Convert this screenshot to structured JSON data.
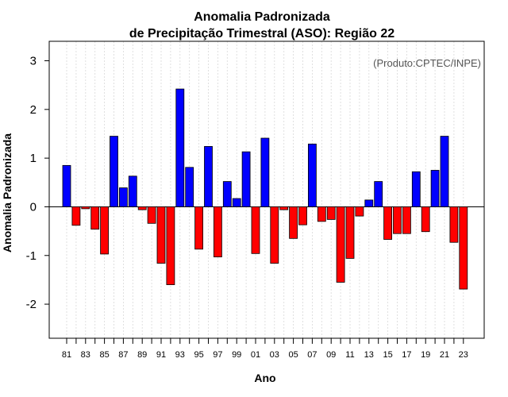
{
  "chart_data": {
    "type": "bar",
    "title_line1": "Anomalia Padronizada",
    "title_line2": "de Precipitação Trimestral (ASO): Região 22",
    "xlabel": "Ano",
    "ylabel": "Anomalia Padronizada",
    "credit": "(Produto:CPTEC/INPE)",
    "ylim": [
      -2.7,
      3.4
    ],
    "yticks": [
      -2,
      -1,
      0,
      1,
      2,
      3
    ],
    "positive_color": "#0000ff",
    "negative_color": "#ff0000",
    "years": [
      1981,
      1982,
      1983,
      1984,
      1985,
      1986,
      1987,
      1988,
      1989,
      1990,
      1991,
      1992,
      1993,
      1994,
      1995,
      1996,
      1997,
      1998,
      1999,
      2000,
      2001,
      2002,
      2003,
      2004,
      2005,
      2006,
      2007,
      2008,
      2009,
      2010,
      2011,
      2012,
      2013,
      2014,
      2015,
      2016,
      2017,
      2018,
      2019,
      2020,
      2021,
      2022,
      2023
    ],
    "values": [
      0.85,
      -0.38,
      -0.04,
      -0.46,
      -0.97,
      1.45,
      0.39,
      0.63,
      -0.06,
      -0.34,
      -1.16,
      -1.6,
      2.42,
      0.81,
      -0.87,
      1.24,
      -1.03,
      0.52,
      0.17,
      1.13,
      -0.96,
      1.41,
      -1.16,
      -0.06,
      -0.65,
      -0.37,
      1.29,
      -0.3,
      -0.26,
      -1.55,
      -1.06,
      -0.19,
      0.14,
      0.52,
      -0.67,
      -0.55,
      -0.55,
      0.72,
      -0.51,
      0.75,
      1.45,
      -0.73,
      -1.69
    ],
    "xtick_labels": [
      "81",
      "83",
      "85",
      "87",
      "89",
      "91",
      "93",
      "95",
      "97",
      "99",
      "01",
      "03",
      "05",
      "07",
      "09",
      "11",
      "13",
      "15",
      "17",
      "19",
      "21",
      "23"
    ]
  }
}
